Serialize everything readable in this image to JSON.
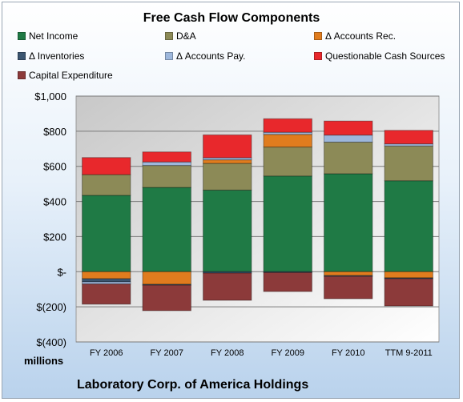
{
  "chart_data": {
    "type": "bar",
    "stacked": true,
    "title": "Free Cash Flow Components",
    "company": "Laboratory Corp. of America Holdings",
    "units_label": "millions",
    "categories": [
      "FY 2006",
      "FY 2007",
      "FY 2008",
      "FY 2009",
      "FY 2010",
      "TTM 9-2011"
    ],
    "ylim": [
      -400,
      1000
    ],
    "yticks": [
      {
        "value": 1000,
        "label": "$1,000"
      },
      {
        "value": 800,
        "label": "$800"
      },
      {
        "value": 600,
        "label": "$600"
      },
      {
        "value": 400,
        "label": "$400"
      },
      {
        "value": 200,
        "label": "$200"
      },
      {
        "value": 0,
        "label": "$-"
      },
      {
        "value": -200,
        "label": "$(200)"
      },
      {
        "value": -400,
        "label": "$(400)"
      }
    ],
    "grid": true,
    "legend_position": "top",
    "series": [
      {
        "name": "Net Income",
        "color": "#1f7a45",
        "values": [
          435,
          480,
          465,
          545,
          558,
          518
        ]
      },
      {
        "name": "D&A",
        "color": "#8c8a57",
        "values": [
          118,
          125,
          152,
          165,
          180,
          198
        ]
      },
      {
        "name": "Δ Accounts Rec.",
        "color": "#e07c1e",
        "values": [
          -40,
          -72,
          20,
          72,
          -22,
          -35
        ]
      },
      {
        "name": "Δ Inventories",
        "color": "#3b5570",
        "values": [
          -18,
          -5,
          -8,
          -5,
          -5,
          -5
        ]
      },
      {
        "name": "Δ Accounts Pay.",
        "color": "#9db7dc",
        "values": [
          -12,
          20,
          12,
          12,
          40,
          12
        ]
      },
      {
        "name": "Questionable Cash Sources",
        "color": "#e8282c",
        "values": [
          97,
          57,
          130,
          77,
          80,
          77
        ]
      },
      {
        "name": "Capital Expenditure",
        "color": "#8c3a3a",
        "values": [
          -115,
          -145,
          -155,
          -108,
          -127,
          -155
        ]
      }
    ]
  }
}
